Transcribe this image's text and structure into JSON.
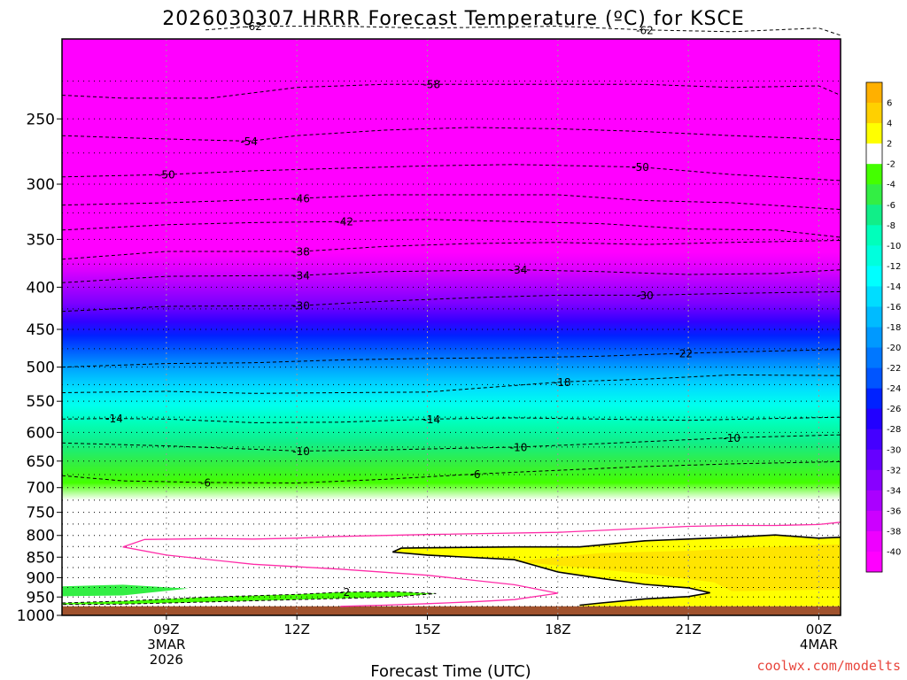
{
  "chart_data": {
    "type": "heatmap",
    "title": "2026030307 HRRR Forecast Temperature (ºC) for KSCE",
    "xlabel": "Forecast Time (UTC)",
    "ylabel": "",
    "credit": "coolwx.com/modelts",
    "y_scale": "log-pressure",
    "ylim": [
      1000,
      200
    ],
    "y_ticks": [
      250,
      300,
      350,
      400,
      450,
      500,
      550,
      600,
      650,
      700,
      750,
      800,
      850,
      900,
      950,
      1000
    ],
    "dotted_pressure_levels": [
      225,
      250,
      275,
      300,
      325,
      350,
      375,
      400,
      425,
      450,
      475,
      500,
      525,
      550,
      575,
      600,
      625,
      650,
      675,
      700,
      725,
      750,
      775,
      800,
      825,
      850,
      875,
      900,
      925,
      950,
      975
    ],
    "xlim_hours": [
      6.6,
      24.5
    ],
    "x_ticks": [
      {
        "hour": 9,
        "lines": [
          "09Z",
          "3MAR",
          "2026"
        ]
      },
      {
        "hour": 12,
        "lines": [
          "12Z"
        ]
      },
      {
        "hour": 15,
        "lines": [
          "15Z"
        ]
      },
      {
        "hour": 18,
        "lines": [
          "18Z"
        ]
      },
      {
        "hour": 21,
        "lines": [
          "21Z"
        ]
      },
      {
        "hour": 24,
        "lines": [
          "00Z",
          "4MAR"
        ]
      }
    ],
    "surface_pressure_hpa": 975,
    "colorbar": {
      "labels": [
        "6",
        "4",
        "2",
        "-2",
        "-4",
        "-6",
        "-8",
        "-10",
        "-12",
        "-14",
        "-16",
        "-18",
        "-20",
        "-22",
        "-24",
        "-26",
        "-28",
        "-30",
        "-32",
        "-34",
        "-36",
        "-38",
        "-40"
      ],
      "colors": [
        "#ffb000",
        "#ffd000",
        "#ffff00",
        "#ffffff",
        "#44ff00",
        "#33ee44",
        "#11ee88",
        "#00ffbb",
        "#00ffdd",
        "#00ffff",
        "#00ddff",
        "#00bbff",
        "#0099ff",
        "#0077ff",
        "#0055ff",
        "#0022ff",
        "#2200ff",
        "#4400ff",
        "#6600ff",
        "#8800ff",
        "#aa00ff",
        "#cc00ff",
        "#ee00ff",
        "#ff00ff"
      ]
    },
    "isotherms": [
      {
        "temp": -62,
        "labels": [
          {
            "hour": 11.0
          },
          {
            "hour": 20.0
          }
        ],
        "points": [
          [
            9.9,
            195
          ],
          [
            11.0,
            193
          ],
          [
            13.0,
            193
          ],
          [
            15.0,
            194
          ],
          [
            18.0,
            193
          ],
          [
            20.0,
            195
          ],
          [
            22.0,
            196
          ],
          [
            24.0,
            194
          ],
          [
            24.5,
            198
          ]
        ]
      },
      {
        "temp": -58,
        "labels": [
          {
            "hour": 15.1
          }
        ],
        "points": [
          [
            6.6,
            234
          ],
          [
            8.0,
            236
          ],
          [
            10.0,
            236
          ],
          [
            12.0,
            229
          ],
          [
            14.0,
            227
          ],
          [
            16.0,
            227
          ],
          [
            18.0,
            227
          ],
          [
            20.0,
            227
          ],
          [
            22.0,
            229
          ],
          [
            24.0,
            228
          ],
          [
            24.5,
            234
          ]
        ]
      },
      {
        "temp": -54,
        "labels": [
          {
            "hour": 10.9
          }
        ],
        "points": [
          [
            6.6,
            262
          ],
          [
            8.5,
            264
          ],
          [
            10.9,
            266
          ],
          [
            12.0,
            262
          ],
          [
            14.0,
            258
          ],
          [
            16.0,
            256
          ],
          [
            18.0,
            257
          ],
          [
            20.0,
            259
          ],
          [
            22.0,
            262
          ],
          [
            24.5,
            265
          ]
        ]
      },
      {
        "temp": -50,
        "labels": [
          {
            "hour": 9.0
          },
          {
            "hour": 19.9
          }
        ],
        "points": [
          [
            6.6,
            294
          ],
          [
            9.0,
            292
          ],
          [
            11.0,
            289
          ],
          [
            13.0,
            287
          ],
          [
            15.0,
            285
          ],
          [
            17.0,
            284
          ],
          [
            19.9,
            286
          ],
          [
            22.0,
            292
          ],
          [
            24.5,
            297
          ]
        ]
      },
      {
        "temp": -46,
        "labels": [
          {
            "hour": 12.1
          }
        ],
        "points": [
          [
            6.6,
            318
          ],
          [
            9.0,
            316
          ],
          [
            12.1,
            312
          ],
          [
            14.0,
            309
          ],
          [
            16.0,
            309
          ],
          [
            18.0,
            309
          ],
          [
            20.0,
            314
          ],
          [
            22.0,
            316
          ],
          [
            24.5,
            322
          ]
        ]
      },
      {
        "temp": -42,
        "labels": [
          {
            "hour": 13.1
          }
        ],
        "points": [
          [
            6.6,
            341
          ],
          [
            9.0,
            336
          ],
          [
            11.0,
            334
          ],
          [
            13.1,
            333
          ],
          [
            15.0,
            331
          ],
          [
            17.0,
            333
          ],
          [
            19.0,
            335
          ],
          [
            21.0,
            340
          ],
          [
            23.0,
            341
          ],
          [
            24.5,
            348
          ]
        ]
      },
      {
        "temp": -38,
        "labels": [
          {
            "hour": 12.1
          }
        ],
        "points": [
          [
            6.6,
            370
          ],
          [
            9.0,
            362
          ],
          [
            12.1,
            362
          ],
          [
            14.0,
            357
          ],
          [
            16.0,
            354
          ],
          [
            18.0,
            353
          ],
          [
            20.0,
            355
          ],
          [
            22.0,
            353
          ],
          [
            24.5,
            351
          ]
        ]
      },
      {
        "temp": -34,
        "labels": [
          {
            "hour": 12.1
          },
          {
            "hour": 17.1
          }
        ],
        "points": [
          [
            6.6,
            395
          ],
          [
            9.0,
            388
          ],
          [
            12.1,
            387
          ],
          [
            14.0,
            383
          ],
          [
            17.1,
            381
          ],
          [
            19.0,
            383
          ],
          [
            21.0,
            386
          ],
          [
            23.0,
            385
          ],
          [
            24.5,
            381
          ]
        ]
      },
      {
        "temp": -30,
        "labels": [
          {
            "hour": 12.1
          },
          {
            "hour": 20.0
          }
        ],
        "points": [
          [
            6.6,
            428
          ],
          [
            9.0,
            422
          ],
          [
            12.1,
            421
          ],
          [
            14.0,
            416
          ],
          [
            16.0,
            412
          ],
          [
            18.0,
            409
          ],
          [
            20.0,
            409
          ],
          [
            22.0,
            407
          ],
          [
            24.5,
            405
          ]
        ]
      },
      {
        "temp": -22,
        "labels": [
          {
            "hour": 20.9
          }
        ],
        "points": [
          [
            6.6,
            500
          ],
          [
            9.0,
            495
          ],
          [
            11.0,
            494
          ],
          [
            13.0,
            490
          ],
          [
            15.0,
            488
          ],
          [
            17.0,
            487
          ],
          [
            19.0,
            485
          ],
          [
            20.9,
            481
          ],
          [
            23.0,
            478
          ],
          [
            24.5,
            476
          ]
        ]
      },
      {
        "temp": -18,
        "labels": [
          {
            "hour": 18.1
          }
        ],
        "points": [
          [
            6.6,
            537
          ],
          [
            9.0,
            535
          ],
          [
            11.0,
            538
          ],
          [
            13.0,
            537
          ],
          [
            15.0,
            536
          ],
          [
            18.1,
            521
          ],
          [
            20.0,
            517
          ],
          [
            22.0,
            511
          ],
          [
            24.5,
            512
          ]
        ]
      },
      {
        "temp": -14,
        "labels": [
          {
            "hour": 7.8
          },
          {
            "hour": 15.1
          }
        ],
        "points": [
          [
            6.6,
            578
          ],
          [
            7.8,
            577
          ],
          [
            9.0,
            578
          ],
          [
            11.0,
            584
          ],
          [
            13.0,
            583
          ],
          [
            15.1,
            578
          ],
          [
            17.0,
            576
          ],
          [
            19.0,
            578
          ],
          [
            21.0,
            580
          ],
          [
            23.0,
            577
          ],
          [
            24.5,
            575
          ]
        ]
      },
      {
        "temp": -10,
        "labels": [
          {
            "hour": 12.1
          },
          {
            "hour": 17.1
          },
          {
            "hour": 22.0
          }
        ],
        "points": [
          [
            6.6,
            618
          ],
          [
            9.0,
            623
          ],
          [
            12.1,
            632
          ],
          [
            14.0,
            630
          ],
          [
            17.1,
            625
          ],
          [
            19.0,
            619
          ],
          [
            22.0,
            609
          ],
          [
            24.5,
            604
          ]
        ]
      },
      {
        "temp": -6,
        "labels": [
          {
            "hour": 9.9
          },
          {
            "hour": 16.1
          }
        ],
        "points": [
          [
            6.6,
            677
          ],
          [
            8.0,
            687
          ],
          [
            9.9,
            690
          ],
          [
            12.0,
            691
          ],
          [
            14.0,
            684
          ],
          [
            16.1,
            674
          ],
          [
            18.0,
            667
          ],
          [
            20.0,
            660
          ],
          [
            22.0,
            655
          ],
          [
            24.5,
            651
          ]
        ]
      },
      {
        "temp": -2,
        "labels": [
          {
            "hour": 13.1
          }
        ],
        "points": [
          [
            6.6,
            966
          ],
          [
            8.0,
            961
          ],
          [
            10.0,
            950
          ],
          [
            12.0,
            943
          ],
          [
            13.1,
            937
          ],
          [
            14.2,
            936
          ],
          [
            15.2,
            941
          ],
          [
            14.2,
            950
          ],
          [
            12.0,
            957
          ],
          [
            10.0,
            963
          ],
          [
            8.0,
            969
          ],
          [
            6.6,
            970
          ]
        ]
      }
    ],
    "solid_contours": [
      {
        "color": "#000000",
        "points": [
          [
            14.2,
            838
          ],
          [
            14.4,
            829
          ],
          [
            15.0,
            828
          ],
          [
            16.0,
            827
          ],
          [
            17.0,
            826
          ],
          [
            18.5,
            826
          ],
          [
            20.0,
            812
          ],
          [
            22.0,
            804
          ],
          [
            23.0,
            799
          ],
          [
            24.0,
            806
          ],
          [
            24.5,
            804
          ]
        ]
      },
      {
        "color": "#000000",
        "points": [
          [
            14.2,
            838
          ],
          [
            15.0,
            845
          ],
          [
            17.0,
            856
          ],
          [
            18.0,
            886
          ],
          [
            19.0,
            902
          ],
          [
            20.0,
            917
          ],
          [
            21.0,
            926
          ],
          [
            21.5,
            939
          ],
          [
            21.0,
            949
          ],
          [
            20.0,
            955
          ],
          [
            19.0,
            966
          ],
          [
            18.5,
            972
          ]
        ]
      },
      {
        "color": "#ff2ca8",
        "points": [
          [
            8.0,
            826
          ],
          [
            8.5,
            809
          ],
          [
            10.0,
            807
          ],
          [
            11.0,
            808
          ],
          [
            12.0,
            806
          ],
          [
            13.0,
            802
          ],
          [
            15.0,
            798
          ],
          [
            18.0,
            793
          ],
          [
            21.0,
            780
          ],
          [
            22.0,
            778
          ],
          [
            23.0,
            778
          ],
          [
            24.0,
            776
          ],
          [
            24.5,
            771
          ]
        ]
      },
      {
        "color": "#ff2ca8",
        "points": [
          [
            8.0,
            826
          ],
          [
            9.0,
            845
          ],
          [
            11.0,
            867
          ],
          [
            13.0,
            879
          ],
          [
            15.0,
            894
          ],
          [
            17.0,
            918
          ],
          [
            18.0,
            940
          ],
          [
            17.0,
            957
          ],
          [
            16.0,
            963
          ],
          [
            15.0,
            968
          ],
          [
            14.0,
            972
          ],
          [
            13.0,
            975
          ]
        ]
      }
    ]
  }
}
